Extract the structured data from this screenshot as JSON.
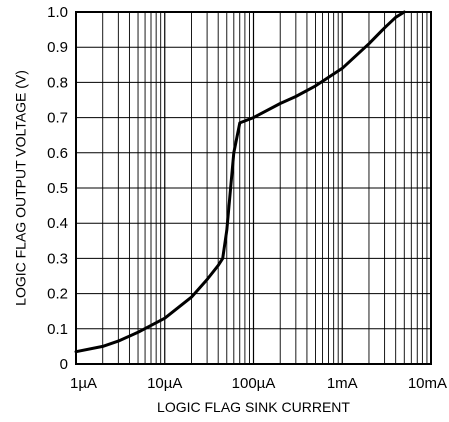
{
  "chart_data": {
    "type": "line",
    "title": "",
    "xlabel": "LOGIC FLAG SINK CURRENT",
    "ylabel": "LOGIC FLAG OUTPUT VOLTAGE (V)",
    "x_scale": "log",
    "x_unit": "A",
    "xlim": [
      1e-06,
      0.01
    ],
    "ylim": [
      0,
      1.0
    ],
    "grid": true,
    "legend": "none",
    "x_tick_values": [
      1e-06,
      1e-05,
      0.0001,
      0.001,
      0.01
    ],
    "x_tick_labels": [
      "1µA",
      "10µA",
      "100µA",
      "1mA",
      "10mA"
    ],
    "y_tick_values": [
      0,
      0.1,
      0.2,
      0.3,
      0.4,
      0.5,
      0.6,
      0.7,
      0.8,
      0.9,
      1.0
    ],
    "y_tick_labels": [
      "0",
      "0.1",
      "0.2",
      "0.3",
      "0.4",
      "0.5",
      "0.6",
      "0.7",
      "0.8",
      "0.9",
      "1.0"
    ],
    "series": [
      {
        "x": [
          1e-06,
          2e-06,
          3e-06,
          5e-06,
          1e-05,
          2e-05,
          3e-05,
          4e-05,
          4.5e-05,
          5e-05,
          6e-05,
          7e-05,
          0.0001,
          0.0002,
          0.0003,
          0.0005,
          0.001,
          0.002,
          0.003,
          0.004,
          0.005
        ],
        "values": [
          0.035,
          0.05,
          0.065,
          0.09,
          0.13,
          0.19,
          0.24,
          0.28,
          0.3,
          0.38,
          0.6,
          0.685,
          0.7,
          0.74,
          0.76,
          0.79,
          0.84,
          0.91,
          0.955,
          0.985,
          1.0
        ]
      }
    ]
  }
}
